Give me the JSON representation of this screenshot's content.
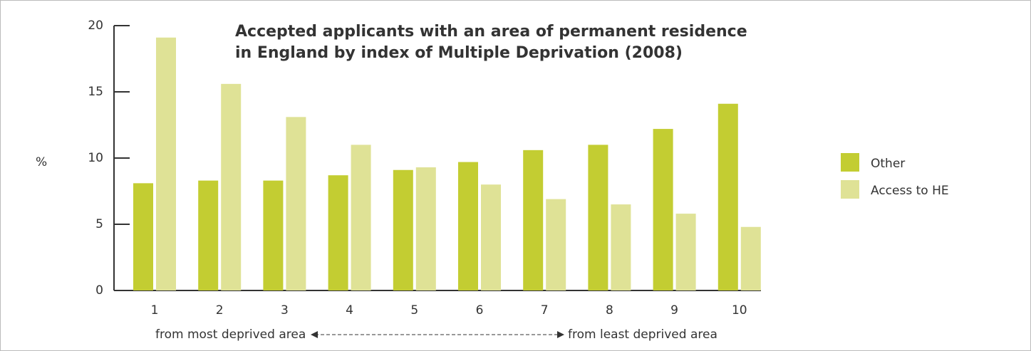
{
  "chart_data": {
    "type": "bar",
    "title": [
      "Accepted applicants with an area of permanent residence",
      "in England by index of Multiple Deprivation (2008)"
    ],
    "y_label": "%",
    "categories": [
      "1",
      "2",
      "3",
      "4",
      "5",
      "6",
      "7",
      "8",
      "9",
      "10"
    ],
    "series": [
      {
        "name": "Other",
        "color": "#c3cd32",
        "values": [
          8.1,
          8.3,
          8.3,
          8.7,
          9.1,
          9.7,
          10.6,
          11.0,
          12.2,
          14.1
        ]
      },
      {
        "name": "Access to HE",
        "color": "#dfe296",
        "values": [
          19.1,
          15.6,
          13.1,
          11.0,
          9.3,
          8.0,
          6.9,
          6.5,
          5.8,
          4.8
        ]
      }
    ],
    "ylim": [
      0,
      20
    ],
    "yticks": [
      0,
      5,
      10,
      15,
      20
    ],
    "annotations": [
      "from most deprived area",
      "from least deprived area"
    ],
    "legend": "right"
  }
}
